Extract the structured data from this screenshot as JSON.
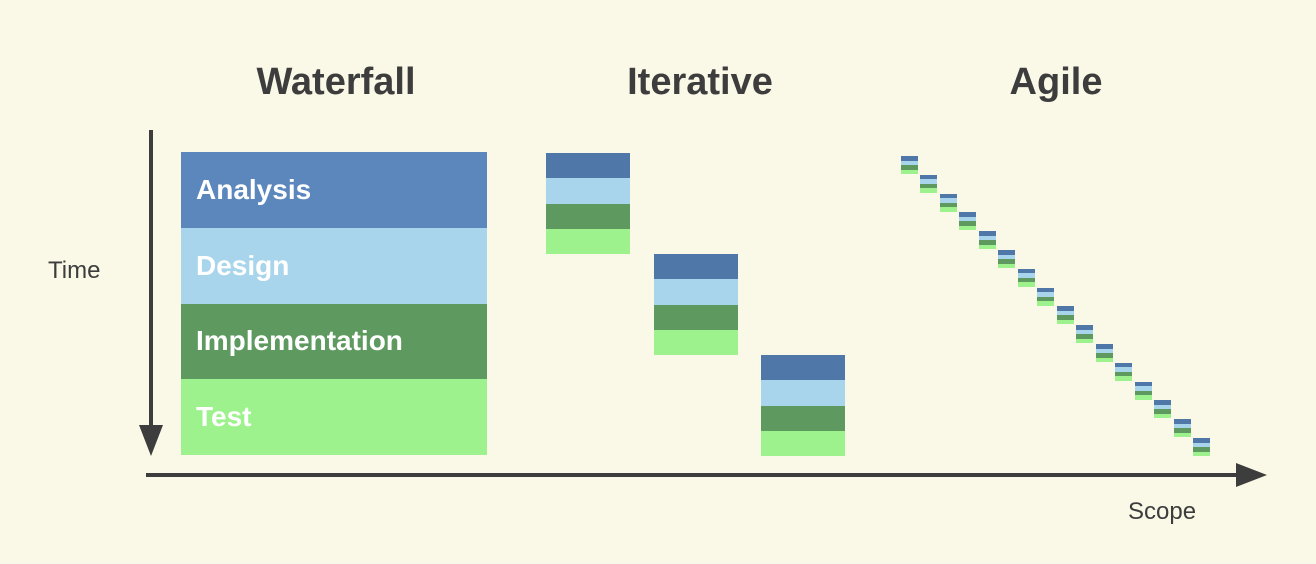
{
  "headings": {
    "waterfall": "Waterfall",
    "iterative": "Iterative",
    "agile": "Agile"
  },
  "axes": {
    "y_label": "Time",
    "x_label": "Scope"
  },
  "waterfall_phases": [
    {
      "label": "Analysis",
      "color": "#5b87bd"
    },
    {
      "label": "Design",
      "color": "#a8d5ec"
    },
    {
      "label": "Implementation",
      "color": "#5e9a5f"
    },
    {
      "label": "Test",
      "color": "#9ef28e"
    }
  ],
  "colors": {
    "background": "#faf8e6",
    "text": "#3d3d3d",
    "axis": "#3d3d3d",
    "analysis": "#4f78a8",
    "design": "#a8d5ec",
    "implementation": "#5e9a5f",
    "test": "#9ef28e"
  },
  "iterative_cycles": 3,
  "agile_cycles": 16
}
